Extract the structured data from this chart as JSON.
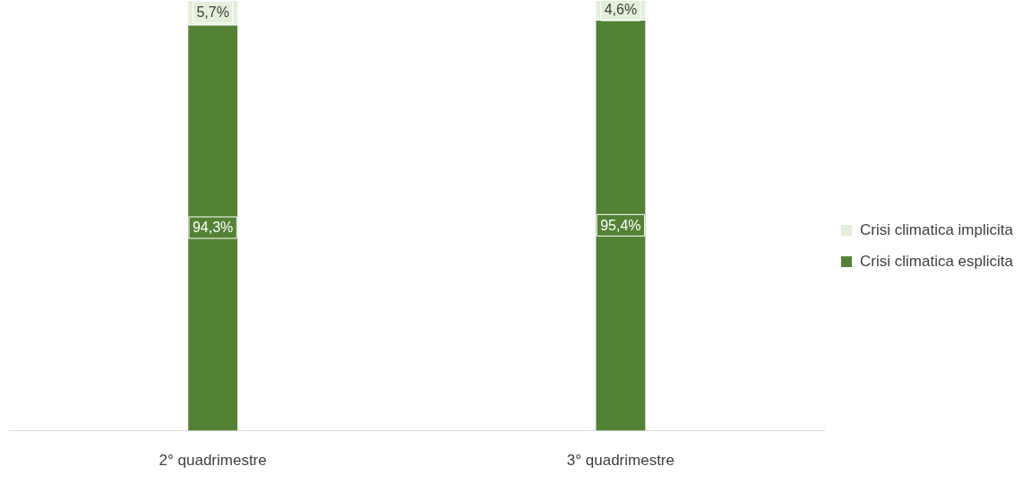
{
  "chart_data": {
    "type": "bar",
    "stacked": true,
    "categories": [
      "2° quadrimestre",
      "3° quadrimestre"
    ],
    "series": [
      {
        "name": "Crisi climatica esplicita",
        "color": "#548235",
        "values": [
          94.3,
          95.4
        ],
        "value_labels": [
          "94,3%",
          "95,4%"
        ]
      },
      {
        "name": "Crisi climatica implicita",
        "color": "#e2efda",
        "values": [
          5.7,
          4.6
        ],
        "value_labels": [
          "5,7%",
          "4,6%"
        ]
      }
    ],
    "grid": false,
    "legend": "right",
    "tick_labels": "x"
  }
}
